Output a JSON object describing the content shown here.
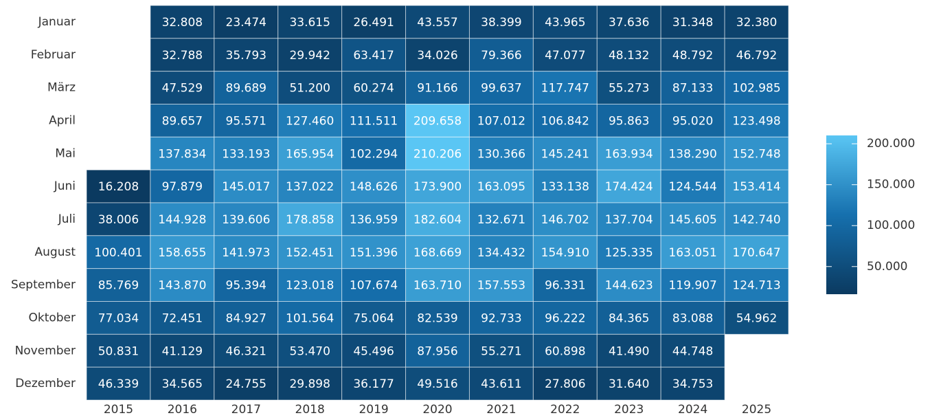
{
  "chart_data": {
    "type": "heatmap",
    "x": [
      "2015",
      "2016",
      "2017",
      "2018",
      "2019",
      "2020",
      "2021",
      "2022",
      "2023",
      "2024",
      "2025"
    ],
    "y": [
      "Januar",
      "Februar",
      "März",
      "April",
      "Mai",
      "Juni",
      "Juli",
      "August",
      "September",
      "Oktober",
      "November",
      "Dezember"
    ],
    "values": [
      [
        null,
        32808,
        23474,
        33615,
        26491,
        43557,
        38399,
        43965,
        37636,
        31348,
        32380
      ],
      [
        null,
        32788,
        35793,
        29942,
        63417,
        34026,
        79366,
        47077,
        48132,
        48792,
        46792
      ],
      [
        null,
        47529,
        89689,
        51200,
        60274,
        91166,
        99637,
        117747,
        55273,
        87133,
        102985
      ],
      [
        null,
        89657,
        95571,
        127460,
        111511,
        209658,
        107012,
        106842,
        95863,
        95020,
        123498
      ],
      [
        null,
        137834,
        133193,
        165954,
        102294,
        210206,
        130366,
        145241,
        163934,
        138290,
        152748
      ],
      [
        16208,
        97879,
        145017,
        137022,
        148626,
        173900,
        163095,
        133138,
        174424,
        124544,
        153414
      ],
      [
        38006,
        144928,
        139606,
        178858,
        136959,
        182604,
        132671,
        146702,
        137704,
        145605,
        142740
      ],
      [
        100401,
        158655,
        141973,
        152451,
        151396,
        168669,
        134432,
        154910,
        125335,
        163051,
        170647
      ],
      [
        85769,
        143870,
        95394,
        123018,
        107674,
        163710,
        157553,
        96331,
        144623,
        119907,
        124713
      ],
      [
        77034,
        72451,
        84927,
        101564,
        75064,
        82539,
        92733,
        96222,
        84365,
        83088,
        54962
      ],
      [
        50831,
        41129,
        46321,
        53470,
        45496,
        87956,
        55271,
        60898,
        41490,
        44748,
        null
      ],
      [
        46339,
        34565,
        24755,
        29898,
        36177,
        49516,
        43611,
        27806,
        31640,
        34753,
        null
      ]
    ],
    "value_labels": [
      [
        null,
        "32.808",
        "23.474",
        "33.615",
        "26.491",
        "43.557",
        "38.399",
        "43.965",
        "37.636",
        "31.348",
        "32.380"
      ],
      [
        null,
        "32.788",
        "35.793",
        "29.942",
        "63.417",
        "34.026",
        "79.366",
        "47.077",
        "48.132",
        "48.792",
        "46.792"
      ],
      [
        null,
        "47.529",
        "89.689",
        "51.200",
        "60.274",
        "91.166",
        "99.637",
        "117.747",
        "55.273",
        "87.133",
        "102.985"
      ],
      [
        null,
        "89.657",
        "95.571",
        "127.460",
        "111.511",
        "209.658",
        "107.012",
        "106.842",
        "95.863",
        "95.020",
        "123.498"
      ],
      [
        null,
        "137.834",
        "133.193",
        "165.954",
        "102.294",
        "210.206",
        "130.366",
        "145.241",
        "163.934",
        "138.290",
        "152.748"
      ],
      [
        "16.208",
        "97.879",
        "145.017",
        "137.022",
        "148.626",
        "173.900",
        "163.095",
        "133.138",
        "174.424",
        "124.544",
        "153.414"
      ],
      [
        "38.006",
        "144.928",
        "139.606",
        "178.858",
        "136.959",
        "182.604",
        "132.671",
        "146.702",
        "137.704",
        "145.605",
        "142.740"
      ],
      [
        "100.401",
        "158.655",
        "141.973",
        "152.451",
        "151.396",
        "168.669",
        "134.432",
        "154.910",
        "125.335",
        "163.051",
        "170.647"
      ],
      [
        "85.769",
        "143.870",
        "95.394",
        "123.018",
        "107.674",
        "163.710",
        "157.553",
        "96.331",
        "144.623",
        "119.907",
        "124.713"
      ],
      [
        "77.034",
        "72.451",
        "84.927",
        "101.564",
        "75.064",
        "82.539",
        "92.733",
        "96.222",
        "84.365",
        "83.088",
        "54.962"
      ],
      [
        "50.831",
        "41.129",
        "46.321",
        "53.470",
        "45.496",
        "87.956",
        "55.271",
        "60.898",
        "41.490",
        "44.748",
        null
      ],
      [
        "46.339",
        "34.565",
        "24.755",
        "29.898",
        "36.177",
        "49.516",
        "43.611",
        "27.806",
        "31.640",
        "34.753",
        null
      ]
    ],
    "colorscale": [
      "#0b3a60",
      "#1670ae",
      "#5ac6f4"
    ],
    "colorbar_ticks": [
      {
        "value": 50000,
        "label": "50.000"
      },
      {
        "value": 100000,
        "label": "100.000"
      },
      {
        "value": 150000,
        "label": "150.000"
      },
      {
        "value": 200000,
        "label": "200.000"
      }
    ]
  }
}
